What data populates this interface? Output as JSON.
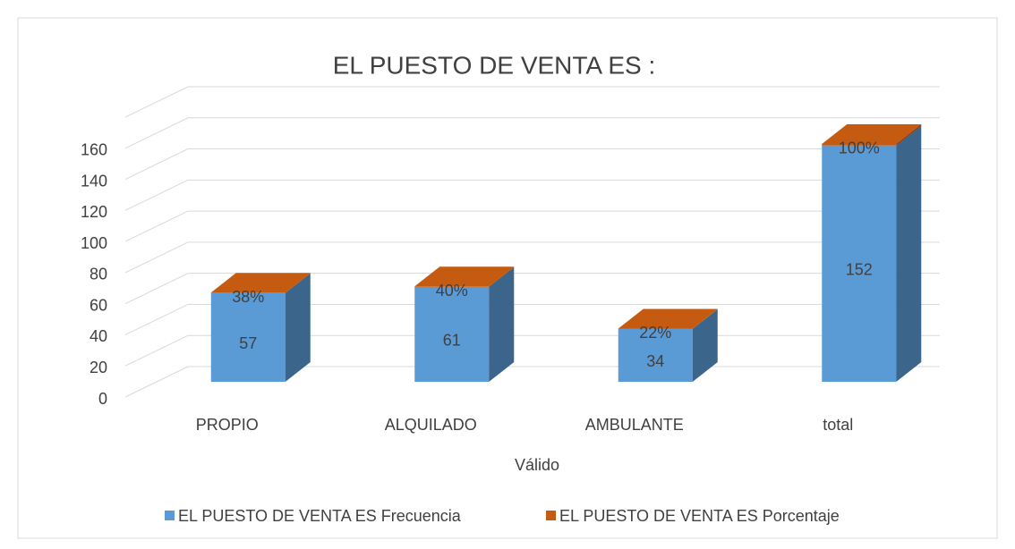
{
  "chart_data": {
    "type": "bar3d_stacked",
    "title": "EL PUESTO DE VENTA ES :",
    "x_label": "Válido",
    "categories": [
      "PROPIO",
      "ALQUILADO",
      "AMBULANTE",
      "total"
    ],
    "series": [
      {
        "name": "EL PUESTO DE VENTA ES Frecuencia",
        "color": "#5b9bd5",
        "values": [
          57,
          61,
          34,
          152
        ]
      },
      {
        "name": "EL PUESTO DE VENTA ES Porcentaje",
        "color": "#c55a11",
        "values": [
          0.38,
          0.4,
          0.22,
          1.0
        ],
        "value_labels": [
          "38%",
          "40%",
          "22%",
          "100%"
        ]
      }
    ],
    "ylim": [
      0,
      180
    ],
    "yticks": [
      0,
      20,
      40,
      60,
      80,
      100,
      120,
      140,
      160
    ],
    "grid": true,
    "legend": "bottom"
  }
}
